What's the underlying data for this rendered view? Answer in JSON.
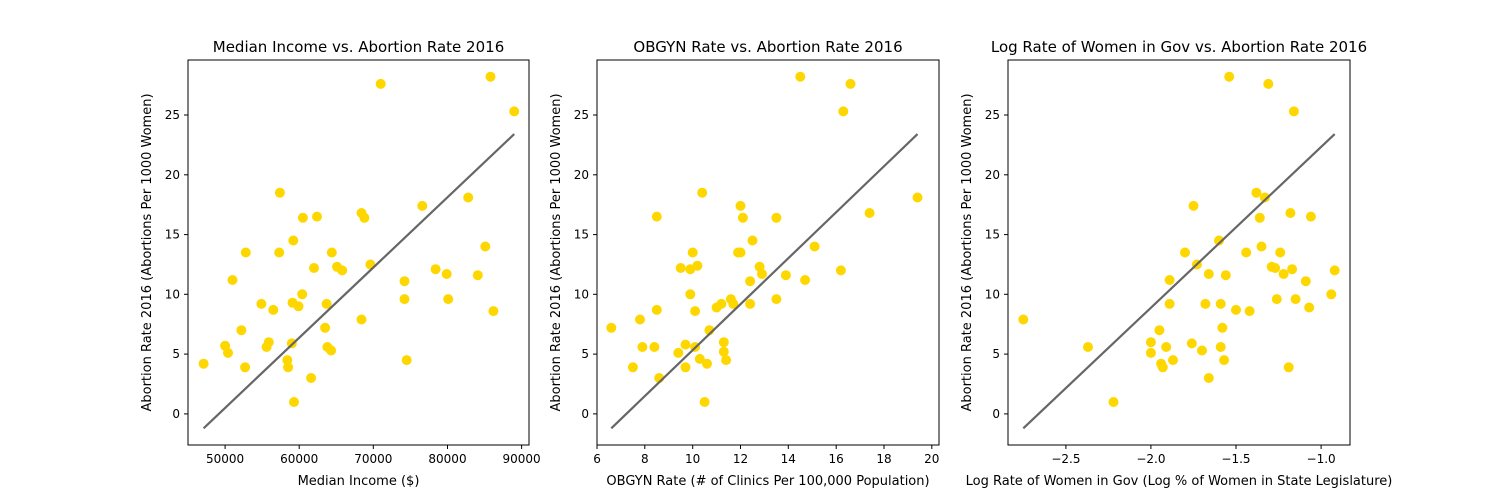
{
  "chart_data": [
    {
      "type": "scatter",
      "title": "Median Income vs. Abortion Rate 2016",
      "xlabel": "Median Income ($)",
      "ylabel": "Abortion Rate 2016 (Abortions Per 1000 Women)",
      "xlim": [
        45000,
        91000
      ],
      "ylim": [
        -2.6,
        29.6
      ],
      "xticks": [
        50000,
        60000,
        70000,
        80000,
        90000
      ],
      "xtick_labels": [
        "50000",
        "60000",
        "70000",
        "80000",
        "90000"
      ],
      "yticks": [
        0,
        5,
        10,
        15,
        20,
        25
      ],
      "ytick_labels": [
        "0",
        "5",
        "10",
        "15",
        "20",
        "25"
      ],
      "grid": false,
      "point_color": "#ffd700",
      "line_color": "#666666",
      "fit_line": {
        "x": [
          47100,
          89000
        ],
        "y": [
          -1.2,
          23.4
        ]
      },
      "x": [
        47100,
        50000,
        50400,
        51000,
        52200,
        52700,
        52800,
        54900,
        55600,
        55900,
        56500,
        57300,
        57400,
        58400,
        58500,
        59000,
        59100,
        59200,
        59300,
        59900,
        60400,
        60500,
        61600,
        62000,
        62400,
        63500,
        63700,
        63800,
        64300,
        64400,
        65100,
        65800,
        68400,
        68400,
        68800,
        69600,
        71000,
        74200,
        74200,
        74500,
        76600,
        78400,
        79900,
        80100,
        82800,
        84100,
        85100,
        85800,
        86200,
        89000
      ],
      "y": [
        4.2,
        5.7,
        5.1,
        11.2,
        7.0,
        3.9,
        13.5,
        9.2,
        5.6,
        6.0,
        8.7,
        13.5,
        18.5,
        4.5,
        3.9,
        5.9,
        9.3,
        14.5,
        1.0,
        9.0,
        10.0,
        16.4,
        3.0,
        12.2,
        16.5,
        7.2,
        9.2,
        5.6,
        5.3,
        13.5,
        12.3,
        12.0,
        7.9,
        16.8,
        16.4,
        12.5,
        27.6,
        11.1,
        9.6,
        4.5,
        17.4,
        12.1,
        11.7,
        9.6,
        18.1,
        11.6,
        14.0,
        28.2,
        8.6,
        25.3
      ]
    },
    {
      "type": "scatter",
      "title": "OBGYN Rate vs. Abortion Rate 2016",
      "xlabel": "OBGYN Rate (# of Clinics Per 100,000 Population)",
      "ylabel": "Abortion Rate 2016 (Abortions Per 1000 Women)",
      "xlim": [
        6.0,
        20.3
      ],
      "ylim": [
        -2.6,
        29.6
      ],
      "xticks": [
        6,
        8,
        10,
        12,
        14,
        16,
        18,
        20
      ],
      "xtick_labels": [
        "6",
        "8",
        "10",
        "12",
        "14",
        "16",
        "18",
        "20"
      ],
      "yticks": [
        0,
        5,
        10,
        15,
        20,
        25
      ],
      "ytick_labels": [
        "0",
        "5",
        "10",
        "15",
        "20",
        "25"
      ],
      "grid": false,
      "point_color": "#ffd700",
      "line_color": "#666666",
      "fit_line": {
        "x": [
          6.6,
          19.4
        ],
        "y": [
          -1.2,
          23.4
        ]
      },
      "x": [
        6.6,
        7.5,
        7.8,
        7.9,
        8.4,
        8.5,
        8.5,
        8.6,
        9.4,
        9.5,
        9.7,
        9.7,
        9.9,
        9.9,
        10.0,
        10.1,
        10.1,
        10.2,
        10.3,
        10.4,
        10.5,
        10.6,
        10.7,
        11.0,
        11.2,
        11.3,
        11.3,
        11.4,
        11.6,
        11.7,
        11.9,
        12.0,
        12.0,
        12.1,
        12.4,
        12.4,
        12.5,
        12.8,
        12.9,
        13.5,
        13.5,
        13.9,
        14.5,
        14.7,
        15.1,
        16.2,
        16.3,
        16.6,
        17.4,
        19.4
      ],
      "y": [
        7.2,
        3.9,
        7.9,
        5.6,
        5.6,
        16.5,
        8.7,
        3.0,
        5.1,
        12.2,
        5.8,
        3.9,
        10.0,
        12.1,
        13.5,
        5.6,
        8.6,
        12.4,
        4.6,
        18.5,
        1.0,
        4.2,
        7.0,
        8.9,
        9.2,
        5.2,
        6.0,
        4.5,
        9.6,
        9.2,
        13.5,
        13.5,
        17.4,
        16.4,
        11.1,
        9.2,
        14.5,
        12.3,
        11.7,
        16.4,
        9.6,
        11.6,
        28.2,
        11.2,
        14.0,
        12.0,
        25.3,
        27.6,
        16.8,
        18.1
      ]
    },
    {
      "type": "scatter",
      "title": "Log Rate of Women in Gov vs. Abortion Rate 2016",
      "xlabel": "Log Rate of Women in Gov (Log % of Women in State Legislature)",
      "ylabel": "Abortion Rate 2016 (Abortions Per 1000 Women)",
      "xlim": [
        -2.84,
        -0.83
      ],
      "ylim": [
        -2.6,
        29.6
      ],
      "xticks": [
        -2.5,
        -2.0,
        -1.5,
        -1.0
      ],
      "xtick_labels": [
        "−2.5",
        "−2.0",
        "−1.5",
        "−1.0"
      ],
      "yticks": [
        0,
        5,
        10,
        15,
        20,
        25
      ],
      "ytick_labels": [
        "0",
        "5",
        "10",
        "15",
        "20",
        "25"
      ],
      "grid": false,
      "point_color": "#ffd700",
      "line_color": "#666666",
      "fit_line": {
        "x": [
          -2.75,
          -0.92
        ],
        "y": [
          -1.2,
          23.4
        ]
      },
      "x": [
        -2.75,
        -2.37,
        -2.22,
        -2.0,
        -2.0,
        -1.95,
        -1.94,
        -1.93,
        -1.91,
        -1.89,
        -1.89,
        -1.87,
        -1.8,
        -1.76,
        -1.75,
        -1.73,
        -1.7,
        -1.68,
        -1.66,
        -1.66,
        -1.6,
        -1.59,
        -1.59,
        -1.58,
        -1.57,
        -1.56,
        -1.54,
        -1.5,
        -1.44,
        -1.42,
        -1.38,
        -1.36,
        -1.35,
        -1.33,
        -1.31,
        -1.29,
        -1.27,
        -1.26,
        -1.24,
        -1.22,
        -1.19,
        -1.18,
        -1.17,
        -1.16,
        -1.15,
        -1.09,
        -1.07,
        -1.06,
        -0.94,
        -0.92
      ],
      "y": [
        7.9,
        5.6,
        1.0,
        5.1,
        6.0,
        7.0,
        4.2,
        3.9,
        5.6,
        9.2,
        11.2,
        4.5,
        13.5,
        5.9,
        17.4,
        12.5,
        5.3,
        9.2,
        3.0,
        11.7,
        14.5,
        9.2,
        5.6,
        7.2,
        4.5,
        11.6,
        28.2,
        8.7,
        13.5,
        8.6,
        18.5,
        16.4,
        14.0,
        18.1,
        27.6,
        12.3,
        12.2,
        9.6,
        13.5,
        11.7,
        3.9,
        16.8,
        12.1,
        25.3,
        9.6,
        11.1,
        8.9,
        16.5,
        10.0,
        12.0
      ]
    }
  ]
}
